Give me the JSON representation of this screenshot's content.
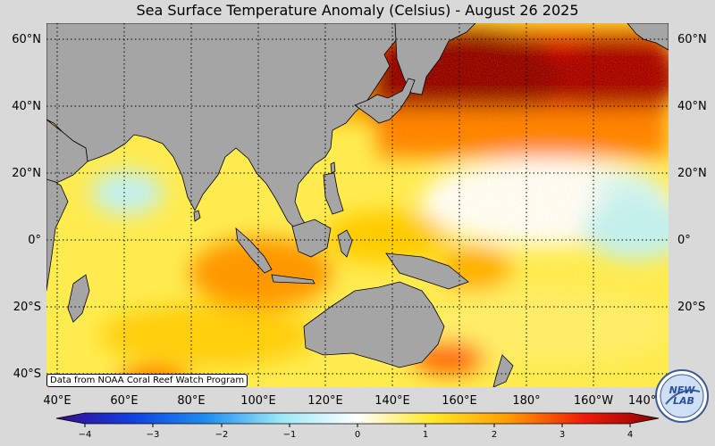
{
  "title": "Sea Surface Temperature Anomaly (Celsius) - August 26 2025",
  "credit": "Data from NOAA Coral Reef Watch Program",
  "logo_text": "NEW LAB",
  "lat_labels": [
    "60°N",
    "40°N",
    "20°N",
    "0°",
    "20°S",
    "40°S"
  ],
  "lat_values": [
    60,
    40,
    20,
    0,
    -20,
    -40
  ],
  "lon_labels": [
    "40°E",
    "60°E",
    "80°E",
    "100°E",
    "120°E",
    "140°E",
    "160°E",
    "180°",
    "160°W",
    "140°W"
  ],
  "lon_values": [
    40,
    60,
    80,
    100,
    120,
    140,
    160,
    180,
    200,
    220
  ],
  "extent": {
    "lon_min": 40,
    "lon_max": 225,
    "lat_min": -44,
    "lat_max": 65
  },
  "colorbar": {
    "min": -4,
    "max": 4,
    "tick_labels": [
      "−4",
      "−3",
      "−2",
      "−1",
      "0",
      "1",
      "2",
      "3",
      "4"
    ],
    "tick_values": [
      -4,
      -3,
      -2,
      -1,
      0,
      1,
      2,
      3,
      4
    ],
    "colors": [
      "#3a0a8c",
      "#1040e0",
      "#1f8ff0",
      "#9fe9f7",
      "#ffffff",
      "#ffe72a",
      "#ff9d00",
      "#ee1c0c",
      "#8e0000"
    ]
  },
  "colors": {
    "land": "#a5a5a5",
    "coast": "#000000",
    "background": "#d9d9d9",
    "grid": "#000000"
  }
}
